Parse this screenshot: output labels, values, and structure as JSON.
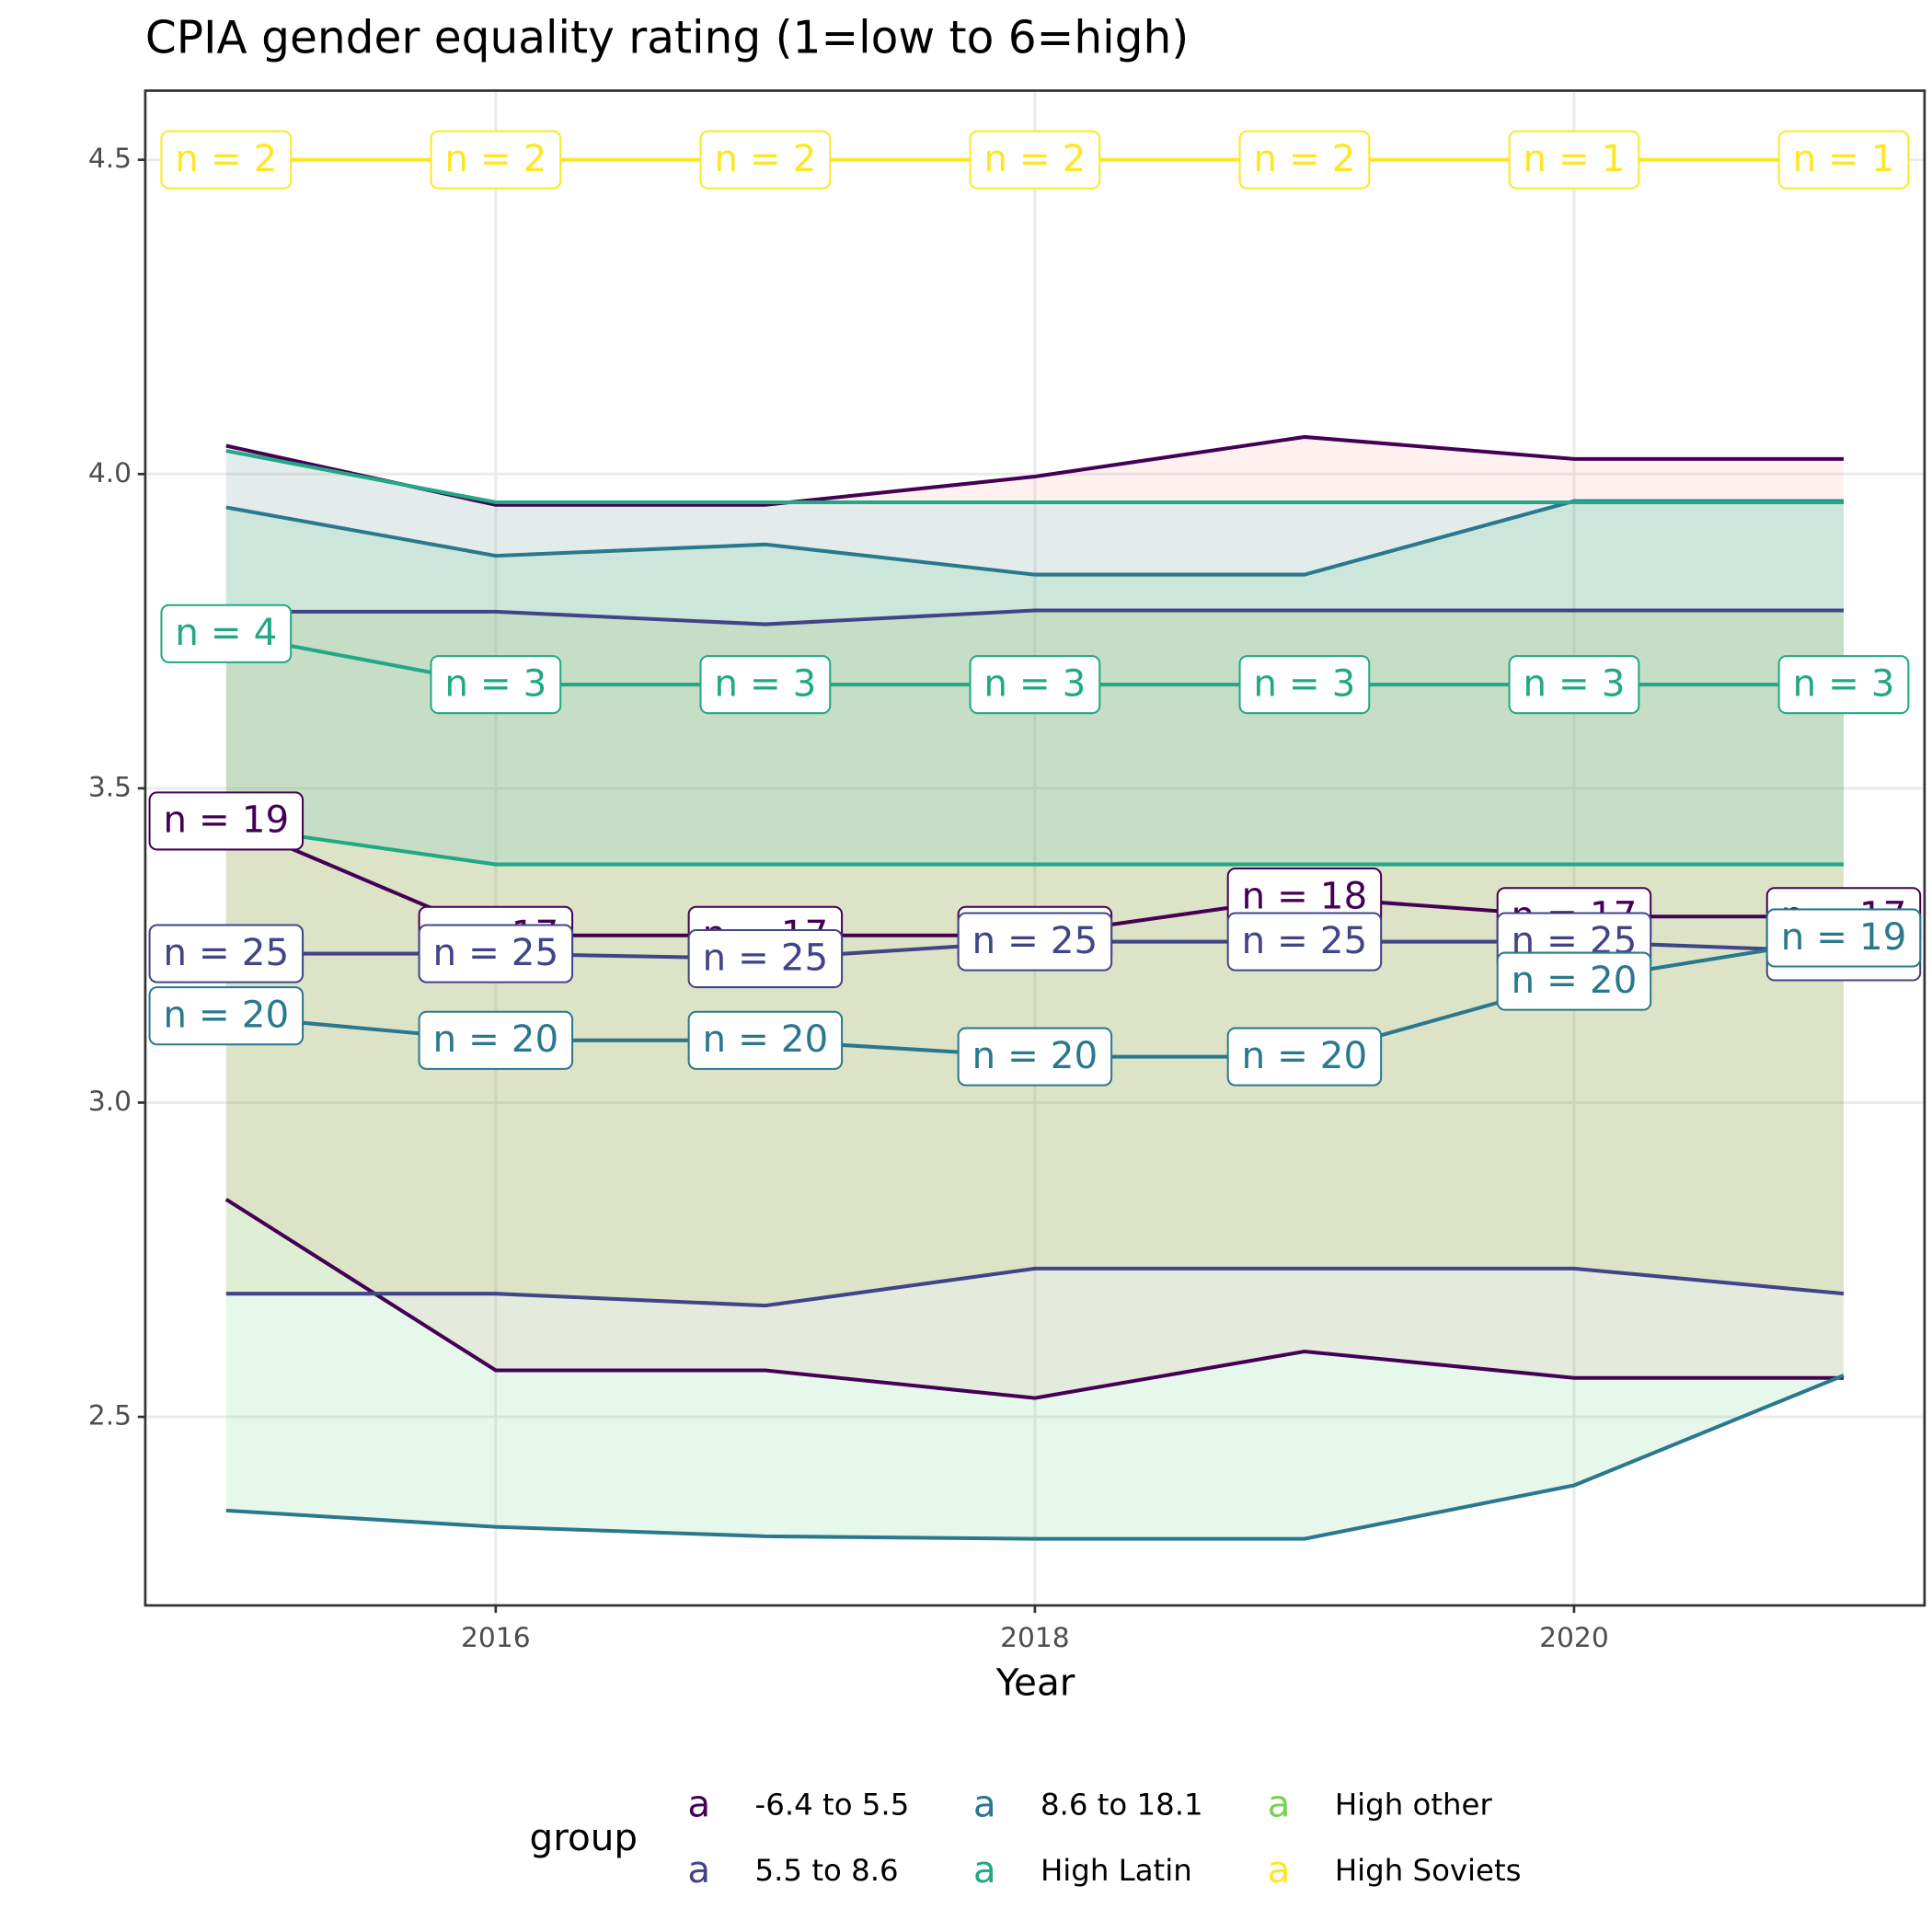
{
  "chart_data": {
    "type": "line",
    "title": "CPIA gender equality rating (1=low to 6=high)",
    "x_label": "Year",
    "legend_title": "group",
    "legend_key": "a",
    "legend_position": "bottom",
    "grid": true,
    "x": [
      2015,
      2016,
      2017,
      2018,
      2019,
      2020,
      2021
    ],
    "xlim": [
      2014.7,
      2021.3
    ],
    "xticks": [
      2016,
      2018,
      2020
    ],
    "ylim": [
      2.2,
      4.61
    ],
    "yticks": [
      2.5,
      {
        "value": 3,
        "label": "3.0"
      },
      3.5,
      {
        "value": 4,
        "label": "4.0"
      },
      4.5
    ],
    "series": [
      {
        "name": "-6.4 to 5.5",
        "color": "#440154",
        "fill": "#F8766D",
        "values": [
          3.448,
          3.266,
          3.266,
          3.266,
          3.327,
          3.296,
          3.296
        ],
        "upper": [
          4.045,
          3.951,
          3.951,
          3.996,
          4.059,
          4.024,
          4.024
        ],
        "lower": [
          2.846,
          2.574,
          2.574,
          2.53,
          2.604,
          2.562,
          2.562
        ],
        "labels": [
          "n = 19",
          "n = 17",
          "n = 17",
          "n = 17",
          "n = 18",
          "n = 17",
          "n = 17"
        ]
      },
      {
        "name": "5.5 to 8.6",
        "color": "#414487",
        "fill": "#B79F00",
        "values": [
          3.237,
          3.237,
          3.229,
          3.256,
          3.256,
          3.256,
          3.24
        ],
        "upper": [
          3.781,
          3.781,
          3.761,
          3.783,
          3.783,
          3.783,
          3.783
        ],
        "lower": [
          2.696,
          2.696,
          2.677,
          2.736,
          2.736,
          2.736,
          2.696
        ],
        "labels": [
          "n = 25",
          "n = 25",
          "n = 25",
          "n = 25",
          "n = 25",
          "n = 25",
          "n = 25"
        ]
      },
      {
        "name": "8.6 to 18.1",
        "color": "#2A788E",
        "fill": "#00BA38",
        "values": [
          3.138,
          3.099,
          3.099,
          3.073,
          3.073,
          3.193,
          3.262
        ],
        "upper": [
          3.947,
          3.87,
          3.888,
          3.84,
          3.84,
          3.957,
          3.957
        ],
        "lower": [
          2.351,
          2.325,
          2.31,
          2.306,
          2.306,
          2.391,
          2.566
        ],
        "labels": [
          "n = 20",
          "n = 20",
          "n = 20",
          "n = 20",
          "n = 20",
          "n = 20",
          "n = 19"
        ]
      },
      {
        "name": "High Latin",
        "color": "#22A884",
        "fill": "#00BFC4",
        "values": [
          3.746,
          3.665,
          3.665,
          3.665,
          3.665,
          3.665,
          3.665
        ],
        "upper": [
          4.037,
          3.955,
          3.955,
          3.955,
          3.955,
          3.955,
          3.955
        ],
        "lower": [
          3.44,
          3.379,
          3.379,
          3.379,
          3.379,
          3.379,
          3.379
        ],
        "labels": [
          "n = 4",
          "n = 3",
          "n = 3",
          "n = 3",
          "n = 3",
          "n = 3",
          "n = 3"
        ]
      },
      {
        "name": "High other",
        "color": "#7AD151",
        "fill": "#619CFF",
        "values": [
          null,
          null,
          null,
          null,
          null,
          null,
          null
        ]
      },
      {
        "name": "High Soviets",
        "color": "#FDE725",
        "fill": "#F564E3",
        "values": [
          4.5,
          4.5,
          4.5,
          4.5,
          4.5,
          4.5,
          4.5
        ],
        "labels": [
          "n = 2",
          "n = 2",
          "n = 2",
          "n = 2",
          "n = 2",
          "n = 1",
          "n = 1"
        ]
      }
    ]
  }
}
